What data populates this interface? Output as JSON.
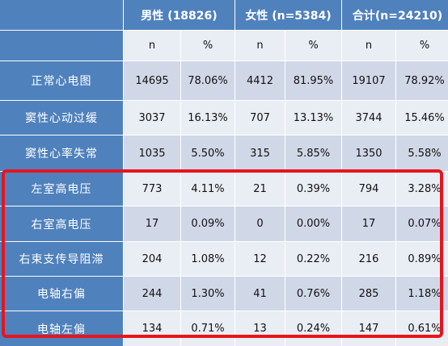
{
  "table": {
    "header_groups": [
      {
        "id": "male",
        "label": "男性 (18826)"
      },
      {
        "id": "female",
        "label": "女性 (n=5384)"
      },
      {
        "id": "total",
        "label": "合计(n=24210)"
      }
    ],
    "subheaders": [
      "n",
      "%",
      "n",
      "%",
      "n",
      "%"
    ],
    "rows": [
      {
        "label": "正常心电图",
        "cells": [
          "14695",
          "78.06%",
          "4412",
          "81.95%",
          "19107",
          "78.92%"
        ]
      },
      {
        "label": "窦性心动过缓",
        "cells": [
          "3037",
          "16.13%",
          "707",
          "13.13%",
          "3744",
          "15.46%"
        ]
      },
      {
        "label": "窦性心率失常",
        "cells": [
          "1035",
          "5.50%",
          "315",
          "5.85%",
          "1350",
          "5.58%"
        ]
      },
      {
        "label": "左室高电压",
        "cells": [
          "773",
          "4.11%",
          "21",
          "0.39%",
          "794",
          "3.28%"
        ]
      },
      {
        "label": "右室高电压",
        "cells": [
          "17",
          "0.09%",
          "0",
          "0.00%",
          "17",
          "0.07%"
        ]
      },
      {
        "label": "右束支传导阻滞",
        "cells": [
          "204",
          "1.08%",
          "12",
          "0.22%",
          "216",
          "0.89%"
        ]
      },
      {
        "label": "电轴右偏",
        "cells": [
          "244",
          "1.30%",
          "41",
          "0.76%",
          "285",
          "1.18%"
        ]
      },
      {
        "label": "电轴左偏",
        "cells": [
          "134",
          "0.71%",
          "13",
          "0.24%",
          "147",
          "0.61%"
        ]
      }
    ]
  },
  "colors": {
    "header_blue": "#4f81bd",
    "band_dark": "#d0d8e8",
    "band_light": "#e9edf4",
    "highlight_red": "#e8141e"
  }
}
